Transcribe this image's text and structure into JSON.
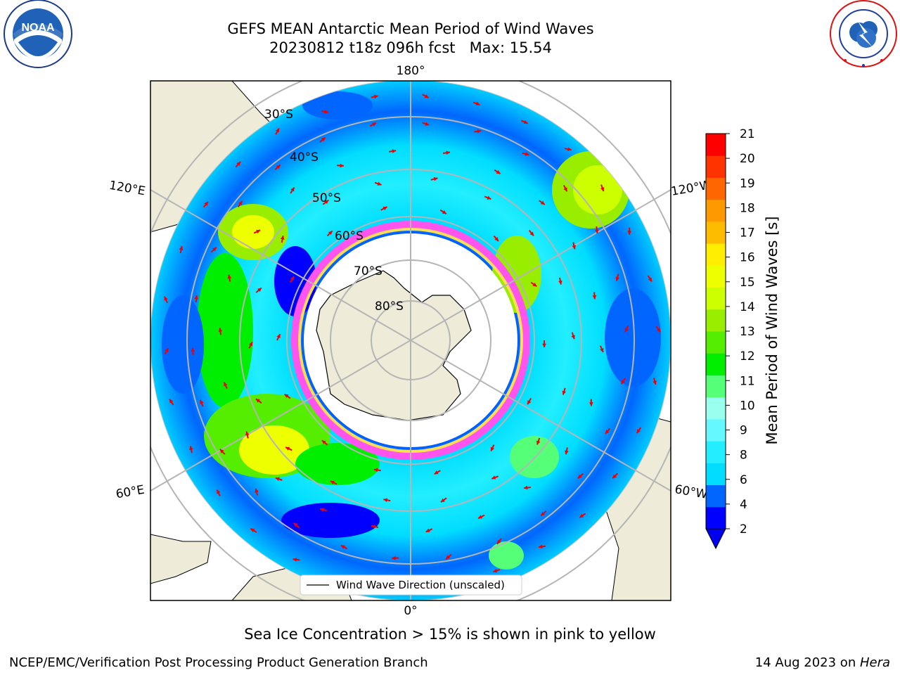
{
  "header": {
    "title_line1": "GEFS MEAN Antarctic Mean Period of Wind Waves",
    "title_line2": "20230812 t18z 096h fcst   Max: 15.54"
  },
  "logos": {
    "left": "NOAA",
    "left_ring_text": "NATIONAL OCEANIC AND ATMOSPHERIC ADMINISTRATION · U.S. DEPARTMENT OF COMMERCE",
    "right_ring_text": "NATIONAL WEATHER SERVICE"
  },
  "map": {
    "projection": "south-polar-stereographic",
    "lon_labels": {
      "top": "180°",
      "bottom": "0°",
      "left_upper": "120°E",
      "left_lower": "60°E",
      "right_upper": "120°W",
      "right_lower": "60°W"
    },
    "lat_labels": [
      "30°S",
      "40°S",
      "50°S",
      "60°S",
      "70°S",
      "80°S"
    ],
    "legend_label": "Wind Wave Direction (unscaled)",
    "field_colors": {
      "land": "#eeecd9",
      "ice_pink": "#ff55ee",
      "ice_yellow": "#ffdd55",
      "arrow": "#ee0000",
      "graticule": "#b5b5b5"
    }
  },
  "colorbar": {
    "label": "Mean Period of Wind Waves [s]",
    "ticks": [
      "2",
      "4",
      "6",
      "8",
      "9",
      "10",
      "11",
      "12",
      "13",
      "14",
      "15",
      "16",
      "17",
      "18",
      "19",
      "20",
      "21"
    ],
    "colors": [
      "#0000ff",
      "#0066ff",
      "#00ddff",
      "#22eeff",
      "#66f8ff",
      "#99ffee",
      "#55ff77",
      "#00ee00",
      "#55ee00",
      "#99ee00",
      "#ccff00",
      "#eeff00",
      "#ffee00",
      "#ffbb00",
      "#ff9900",
      "#ff6600",
      "#ff3300",
      "#ff0000"
    ],
    "under_color": "#0000ee"
  },
  "note": "Sea Ice Concentration > 15% is shown in pink to yellow",
  "footer": {
    "left": "NCEP/EMC/Verification Post Processing Product Generation Branch",
    "right_date": "14 Aug 2023 on ",
    "right_machine": "Hera"
  }
}
